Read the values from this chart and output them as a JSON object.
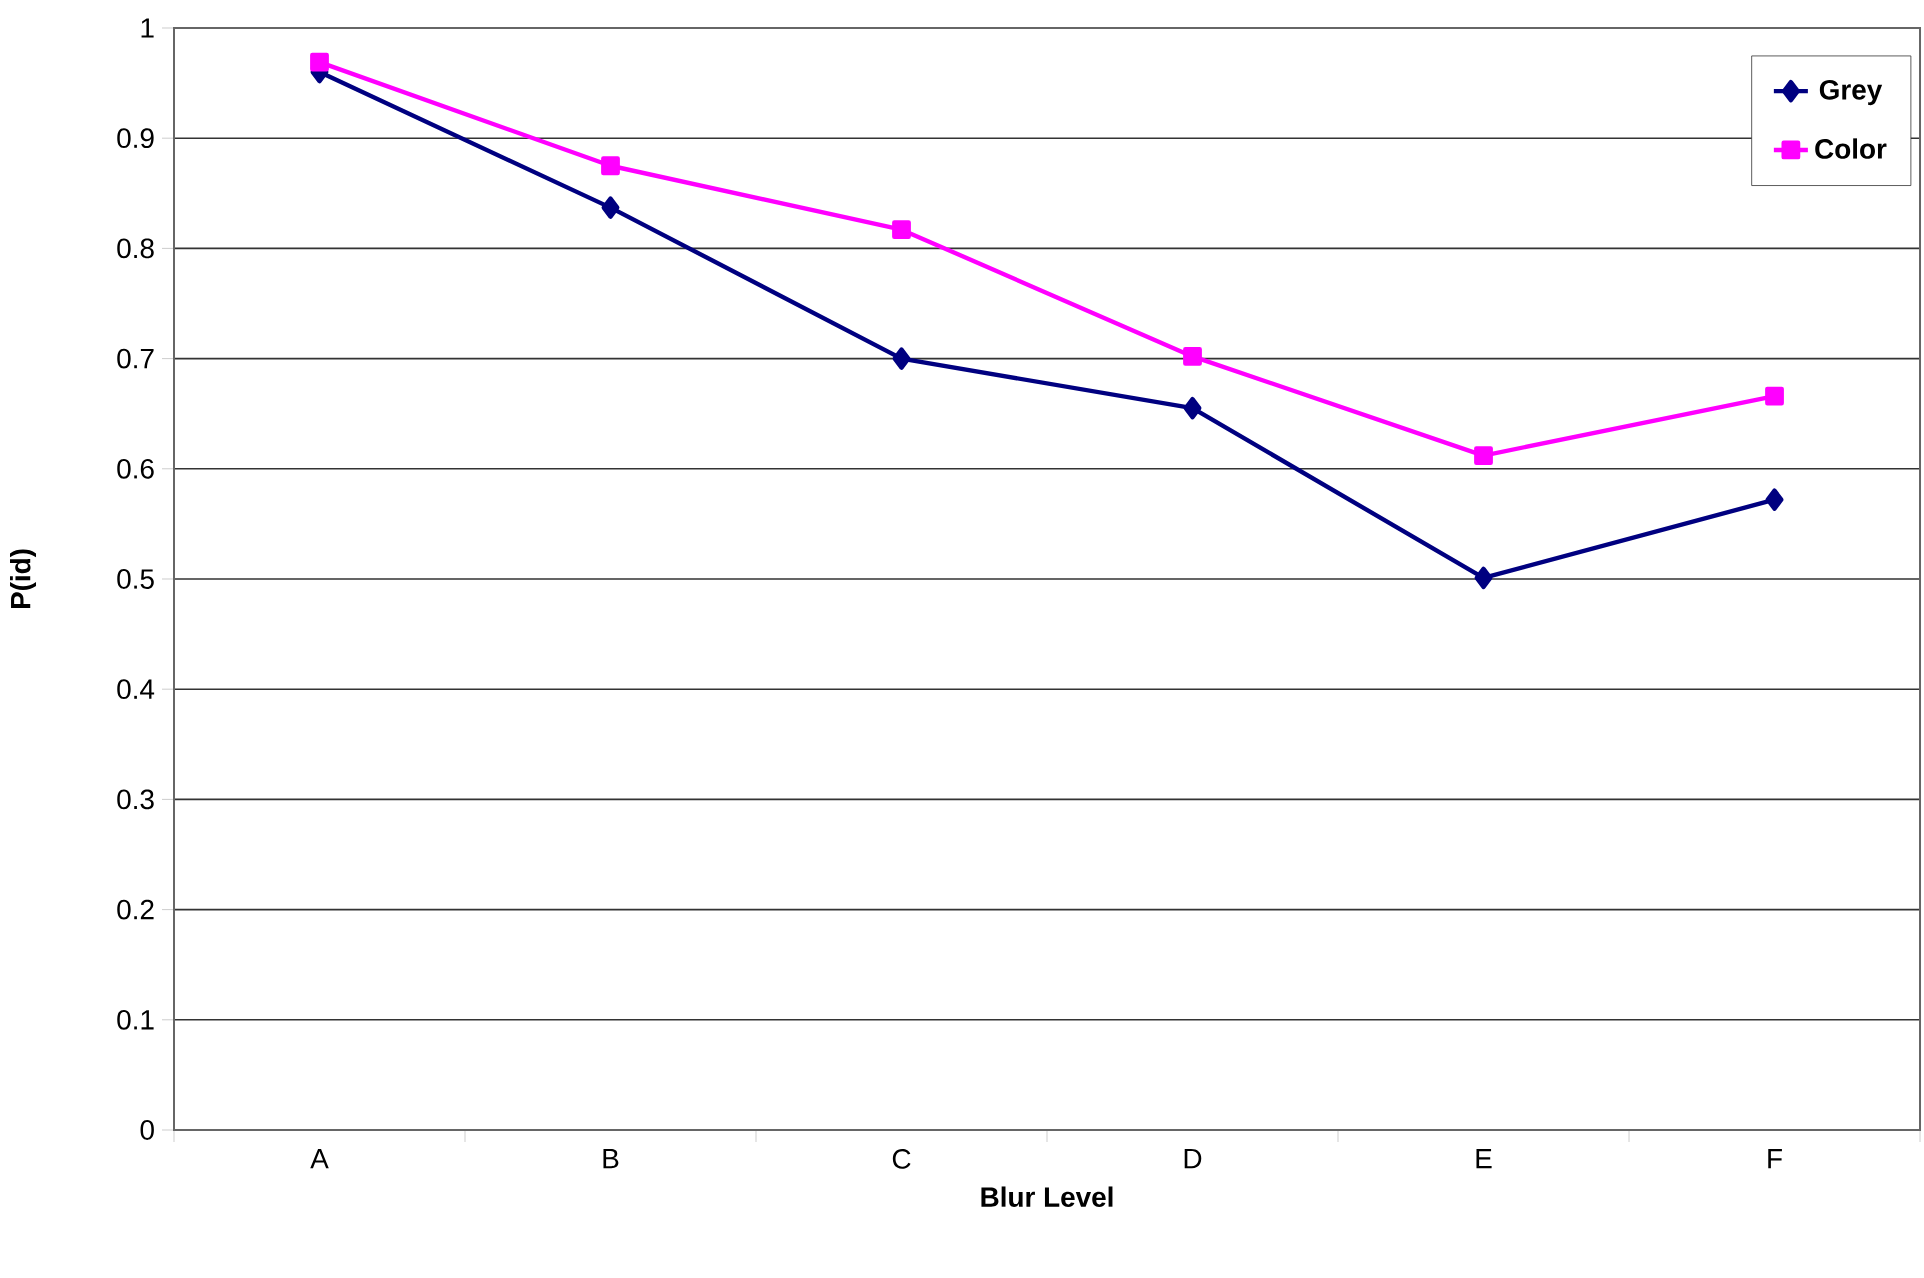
{
  "chart_data": {
    "type": "line",
    "xlabel": "Blur Level",
    "ylabel": "P(id)",
    "categories": [
      "A",
      "B",
      "C",
      "D",
      "E",
      "F"
    ],
    "series": [
      {
        "name": "Grey",
        "color": "#000080",
        "marker": "diamond",
        "values": [
          0.96,
          0.837,
          0.7,
          0.655,
          0.501,
          0.572
        ]
      },
      {
        "name": "Color",
        "color": "#ff00ff",
        "marker": "square",
        "values": [
          0.969,
          0.875,
          0.817,
          0.702,
          0.612,
          0.666
        ]
      }
    ],
    "ylim": [
      0,
      1
    ],
    "yticks": [
      0,
      0.1,
      0.2,
      0.3,
      0.4,
      0.5,
      0.6,
      0.7,
      0.8,
      0.9,
      1
    ],
    "grid": "y",
    "legend": "top right",
    "line_style": "solid"
  }
}
